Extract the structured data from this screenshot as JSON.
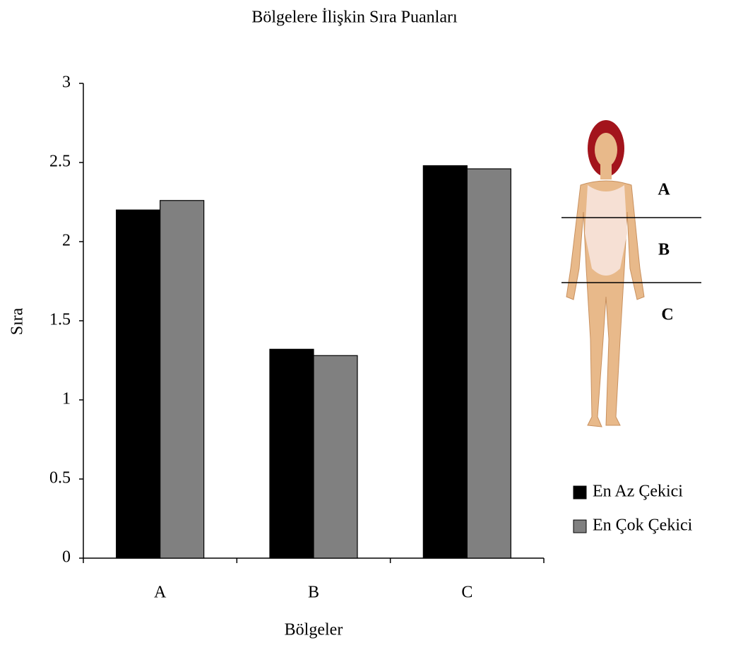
{
  "chart_data": {
    "type": "bar",
    "title": "Bölgelere İlişkin Sıra Puanları",
    "x_label": "Bölgeler",
    "y_label": "Sıra",
    "categories": [
      "A",
      "B",
      "C"
    ],
    "series": [
      {
        "name": "En Az Çekici",
        "color": "#000000",
        "values": [
          2.2,
          1.32,
          2.48
        ]
      },
      {
        "name": "En Çok Çekici",
        "color": "#808080",
        "values": [
          2.26,
          1.28,
          2.46
        ]
      }
    ],
    "ylim": [
      0,
      3
    ],
    "yticks": [
      0,
      0.5,
      1,
      1.5,
      2,
      2.5,
      3
    ],
    "grid": false,
    "legend": "right",
    "annotations": [
      "A",
      "B",
      "C"
    ]
  }
}
